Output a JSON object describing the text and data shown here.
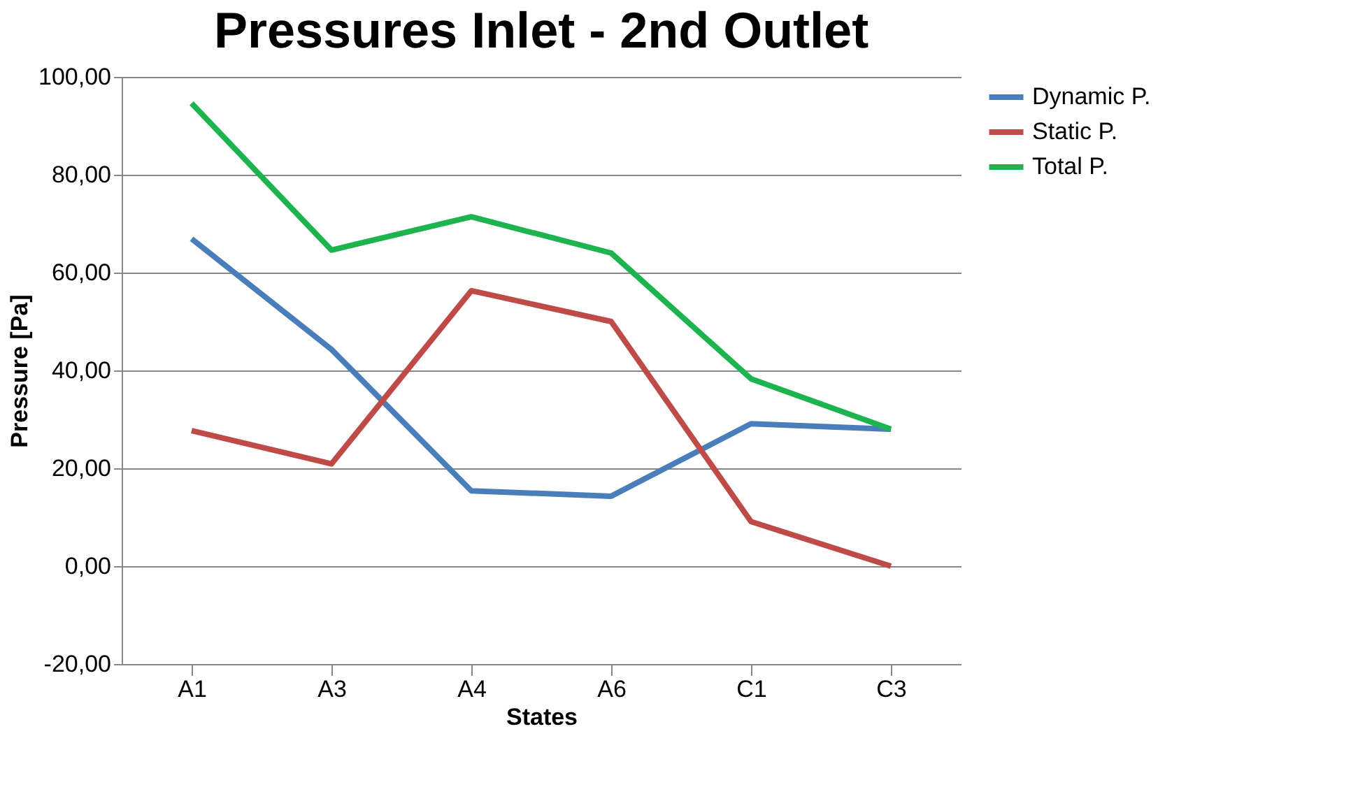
{
  "chart_data": {
    "type": "line",
    "title": "Pressures Inlet - 2nd Outlet",
    "xlabel": "States",
    "ylabel": "Pressure [Pa]",
    "categories": [
      "A1",
      "A3",
      "A4",
      "A6",
      "C1",
      "C3"
    ],
    "series": [
      {
        "name": "Dynamic P.",
        "color": "#4a7ebb",
        "values": [
          66.9,
          44.3,
          15.4,
          14.3,
          29.1,
          28.0
        ]
      },
      {
        "name": "Static P.",
        "color": "#be4b48",
        "values": [
          27.7,
          20.9,
          56.3,
          50.0,
          9.1,
          0.0
        ]
      },
      {
        "name": "Total P.",
        "color": "#1db34f",
        "values": [
          94.6,
          64.6,
          71.4,
          64.0,
          38.3,
          28.0
        ]
      }
    ],
    "ylim": [
      -20,
      100
    ],
    "yticks": [
      {
        "value": -20,
        "label": "-20,00"
      },
      {
        "value": 0,
        "label": "0,00"
      },
      {
        "value": 20,
        "label": "20,00"
      },
      {
        "value": 40,
        "label": "40,00"
      },
      {
        "value": 60,
        "label": "60,00"
      },
      {
        "value": 80,
        "label": "80,00"
      },
      {
        "value": 100,
        "label": "100,00"
      }
    ],
    "grid": "y",
    "legend": "right",
    "marker": "none",
    "line_style": "solid"
  }
}
